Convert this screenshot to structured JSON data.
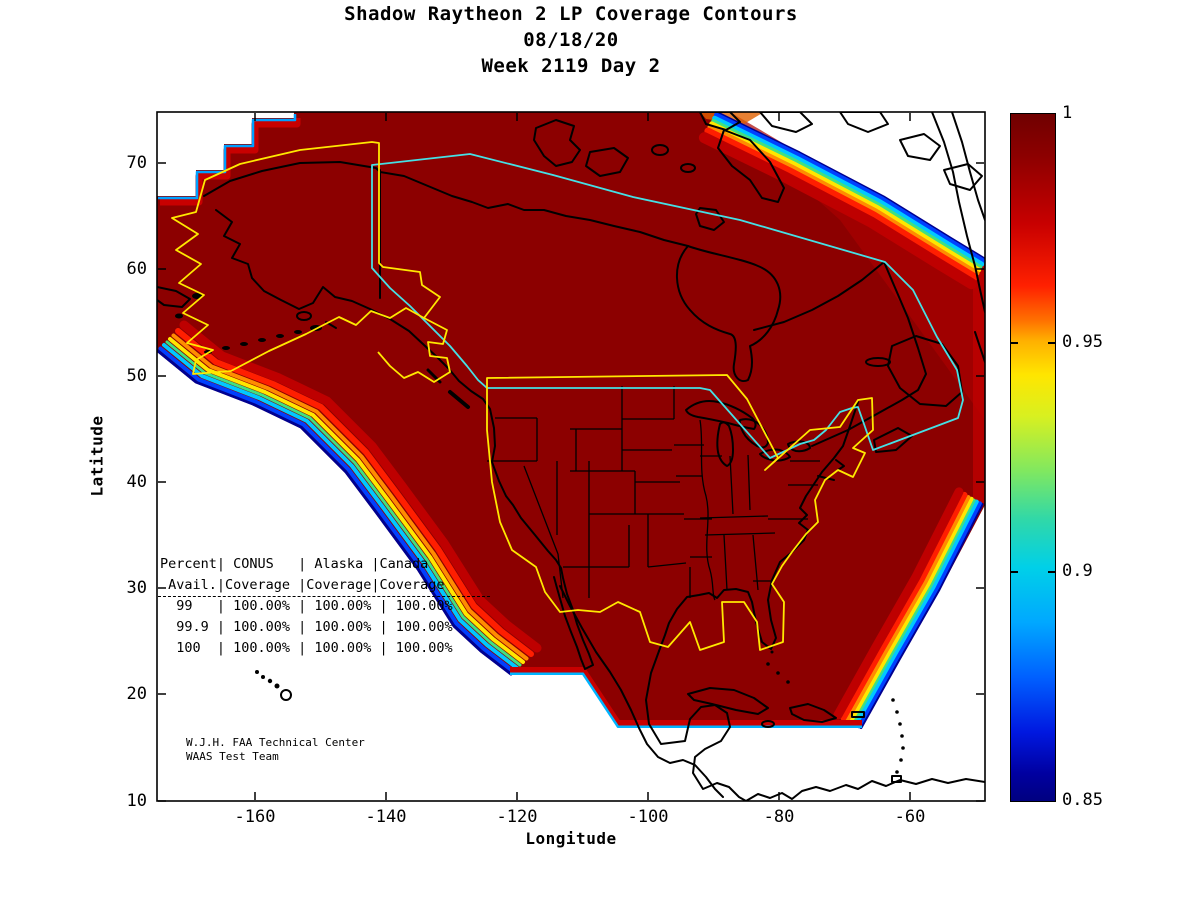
{
  "figure": {
    "title_line1": "Shadow Raytheon 2 LP Coverage Contours",
    "title_line2": "08/18/20",
    "title_line3": "Week 2119 Day 2"
  },
  "axes": {
    "xlabel": "Longitude",
    "ylabel": "Latitude",
    "x_tick_labels": [
      "-160",
      "-140",
      "-120",
      "-100",
      "-80",
      "-60"
    ],
    "y_tick_labels": [
      "10",
      "20",
      "30",
      "40",
      "50",
      "60",
      "70"
    ]
  },
  "colorbar": {
    "labels": [
      "1",
      "0.95",
      "0.9",
      "0.85"
    ],
    "min": 0.85,
    "max": 1
  },
  "coverage_table": {
    "lines": [
      "Percent| CONUS   | Alaska |Canada",
      " Avail.|Coverage |Coverage|Coverage",
      "  99   | 100.00% | 100.00% | 100.00%",
      "  99.9 | 100.00% | 100.00% | 100.00%",
      "  100  | 100.00% | 100.00% | 100.00%"
    ]
  },
  "credit_line1": "W.J.H. FAA Technical Center",
  "credit_line2": "WAAS Test Team",
  "colors": {
    "coverage_interior": "#8C0000",
    "bright_band": "#BE0000",
    "conus_outline": "#FFE800",
    "alaska_outline": "#FFE800",
    "canada_outline": "#45E0E5",
    "coastline": "#000000",
    "background": "#FFFFFF",
    "fringe_jet": [
      "#000090",
      "#0040FF",
      "#00C8FF",
      "#40E080",
      "#FFE600",
      "#FF8C00",
      "#FF1E00",
      "#C00000"
    ]
  },
  "chart_data": {
    "type": "heatmap",
    "title": "Shadow Raytheon 2 LP Coverage Contours",
    "subtitle": [
      "08/18/20",
      "Week 2119 Day 2"
    ],
    "xlabel": "Longitude",
    "ylabel": "Latitude",
    "xlim": [
      -175,
      -48
    ],
    "ylim": [
      10,
      75
    ],
    "x_ticks": [
      -160,
      -140,
      -120,
      -100,
      -80,
      -60
    ],
    "y_ticks": [
      10,
      20,
      30,
      40,
      50,
      60,
      70
    ],
    "grid": false,
    "colormap": "jet",
    "colorbar_range": [
      0.85,
      1
    ],
    "colorbar_ticks": [
      1,
      0.95,
      0.9,
      0.85
    ],
    "description": "WAAS LP service availability coverage contours over North America. Interior of the coverage region is saturated dark red (availability = 1.0). Narrow rainbow fringe bands (red-orange-yellow-green-cyan-blue, 1.0 down to 0.85) run along the southwest Pacific boundary, the southeast Atlantic boundary, the stepped northwest corner and the northeast (Greenland) boundary of the data region. Region outlines overlaid: CONUS (yellow) with state boundaries, Alaska (yellow zigzag), Canada (cyan).",
    "regions": [
      {
        "name": "CONUS",
        "outline_color": "#FFE800"
      },
      {
        "name": "Alaska",
        "outline_color": "#FFE800"
      },
      {
        "name": "Canada",
        "outline_color": "#45E0E5"
      }
    ],
    "table": {
      "columns": [
        "Percent Avail.",
        "CONUS Coverage",
        "Alaska Coverage",
        "Canada Coverage"
      ],
      "rows": [
        [
          "99",
          "100.00%",
          "100.00%",
          "100.00%"
        ],
        [
          "99.9",
          "100.00%",
          "100.00%",
          "100.00%"
        ],
        [
          "100",
          "100.00%",
          "100.00%",
          "100.00%"
        ]
      ]
    },
    "annotations": [
      "W.J.H. FAA Technical Center",
      "WAAS Test Team"
    ]
  }
}
